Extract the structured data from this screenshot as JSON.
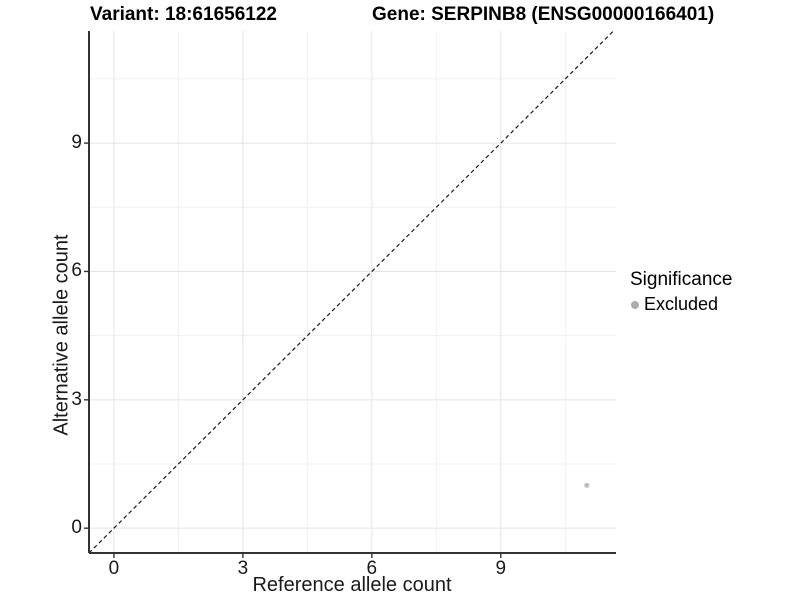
{
  "chart_data": {
    "type": "scatter",
    "titles": {
      "left": "Variant: 18:61656122",
      "right": "Gene: SERPINB8 (ENSG00000166401)"
    },
    "xlabel": "Reference allele count",
    "ylabel": "Alternative allele count",
    "xlim": [
      -0.58,
      11.68
    ],
    "ylim": [
      -0.58,
      11.62
    ],
    "x_ticks": [
      0,
      3,
      6,
      9
    ],
    "y_ticks": [
      0,
      3,
      6,
      9
    ],
    "x_minor_gridlines": [
      1.5,
      4.5,
      7.5,
      10.5
    ],
    "y_minor_gridlines": [
      1.5,
      4.5,
      7.5,
      10.5
    ],
    "grid": true,
    "points": [
      {
        "x": 11,
        "y": 1,
        "significance": "Excluded",
        "color": "#bdbdbd",
        "radius": 2.5
      }
    ],
    "identity_line": {
      "slope": 1,
      "intercept": 0,
      "style": "dashed",
      "color": "#1a1a1a"
    },
    "legend": {
      "position": "right",
      "title": "Significance",
      "items": [
        {
          "label": "Excluded",
          "color": "#adadad"
        }
      ]
    },
    "colors": {
      "background": "#ffffff",
      "grid_major": "#e4e4e4",
      "grid_minor": "#f1f1f1",
      "axis_line": "#333333",
      "tick_mark": "#333333",
      "tick_text": "#1a1a1a"
    }
  }
}
